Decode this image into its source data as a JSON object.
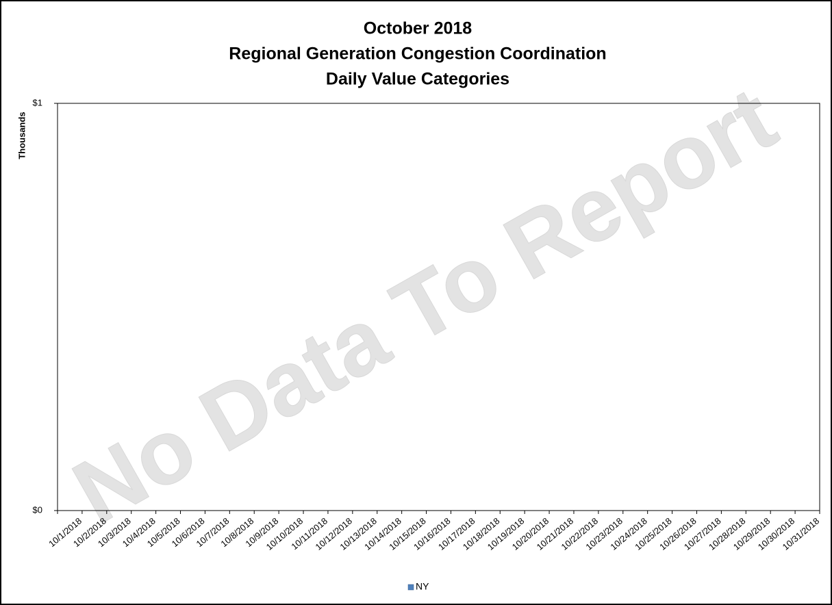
{
  "chart_data": {
    "type": "bar",
    "title": [
      "October 2018",
      "Regional Generation Congestion Coordination",
      "Daily Value Categories"
    ],
    "y_label": "Thousands",
    "watermark": "No Data To Report",
    "categories": [
      "10/1/2018",
      "10/2/2018",
      "10/3/2018",
      "10/4/2018",
      "10/5/2018",
      "10/6/2018",
      "10/7/2018",
      "10/8/2018",
      "10/9/2018",
      "10/10/2018",
      "10/11/2018",
      "10/12/2018",
      "10/13/2018",
      "10/14/2018",
      "10/15/2018",
      "10/16/2018",
      "10/17/2018",
      "10/18/2018",
      "10/19/2018",
      "10/20/2018",
      "10/21/2018",
      "10/22/2018",
      "10/23/2018",
      "10/24/2018",
      "10/25/2018",
      "10/26/2018",
      "10/27/2018",
      "10/28/2018",
      "10/29/2018",
      "10/30/2018",
      "10/31/2018"
    ],
    "series": [
      {
        "name": "NY",
        "color": "#4f81bd",
        "values": [
          null,
          null,
          null,
          null,
          null,
          null,
          null,
          null,
          null,
          null,
          null,
          null,
          null,
          null,
          null,
          null,
          null,
          null,
          null,
          null,
          null,
          null,
          null,
          null,
          null,
          null,
          null,
          null,
          null,
          null,
          null
        ]
      }
    ],
    "ylim": [
      0,
      1
    ],
    "yticks": [
      {
        "value": 0,
        "label": "$0"
      },
      {
        "value": 1,
        "label": "$1"
      }
    ],
    "grid": false,
    "legend": "bottom"
  }
}
